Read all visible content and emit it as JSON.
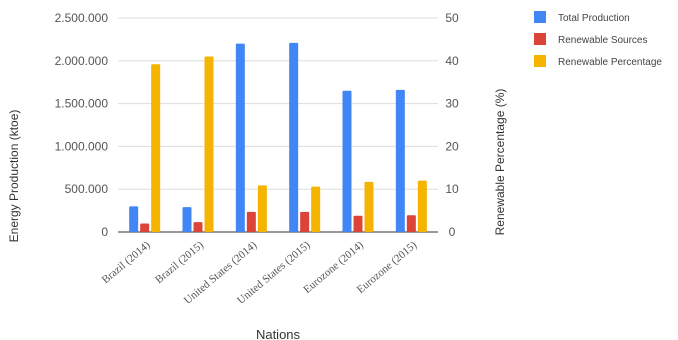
{
  "chart_data": {
    "type": "bar",
    "categories": [
      "Brazil (2014)",
      "Brazil (2015)",
      "United States (2014)",
      "United States (2015)",
      "Eurozone (2014)",
      "Eurozone (2015)"
    ],
    "series": [
      {
        "name": "Total Production",
        "axis": "left",
        "color": "#4285f4",
        "values": [
          300000,
          290000,
          2200000,
          2210000,
          1650000,
          1660000
        ]
      },
      {
        "name": "Renewable Sources",
        "axis": "left",
        "color": "#db4437",
        "values": [
          100000,
          115000,
          235000,
          235000,
          190000,
          195000
        ]
      },
      {
        "name": "Renewable Percentage",
        "axis": "right",
        "color": "#f4b400",
        "values": [
          39.2,
          41.0,
          10.9,
          10.6,
          11.7,
          12.0
        ]
      }
    ],
    "xlabel": "Nations",
    "ylabel": "Energy Production (ktoe)",
    "y2label": "Renewable Percentage (%)",
    "ylim": [
      0,
      2500000
    ],
    "y2lim": [
      0,
      50
    ],
    "yticks": [
      "0",
      "500.000",
      "1.000.000",
      "1.500.000",
      "2.000.000",
      "2.500.000"
    ],
    "y2ticks": [
      "0",
      "10",
      "20",
      "30",
      "40",
      "50"
    ],
    "grid": true,
    "legend_position": "top-right"
  }
}
